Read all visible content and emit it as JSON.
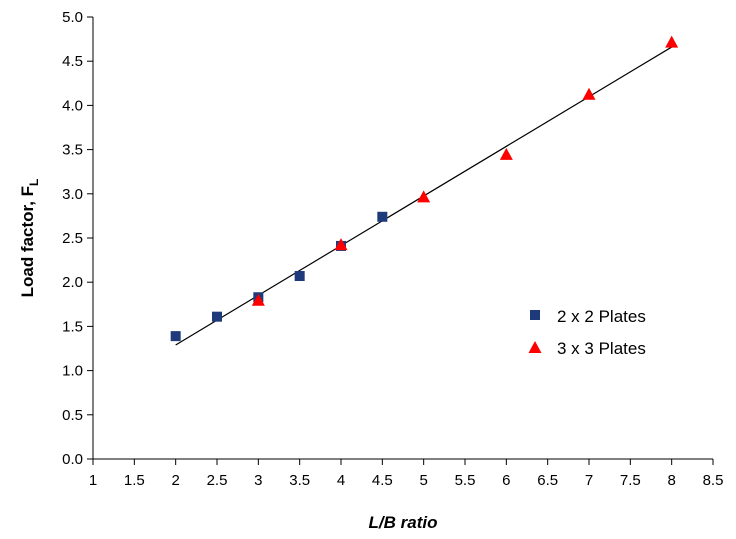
{
  "chart_data": {
    "type": "scatter",
    "title": "",
    "xlabel": "L/B ratio",
    "ylabel": "Load factor, F",
    "ylabel_subscript": "L",
    "xlim": [
      1,
      8.5
    ],
    "ylim": [
      0,
      5.0
    ],
    "x_ticks": [
      "1",
      "1.5",
      "2",
      "2.5",
      "3",
      "3.5",
      "4",
      "4.5",
      "5",
      "5.5",
      "6",
      "6.5",
      "7",
      "7.5",
      "8",
      "8.5"
    ],
    "x_tick_values": [
      1,
      1.5,
      2,
      2.5,
      3,
      3.5,
      4,
      4.5,
      5,
      5.5,
      6,
      6.5,
      7,
      7.5,
      8,
      8.5
    ],
    "y_ticks": [
      "0.0",
      "0.5",
      "1.0",
      "1.5",
      "2.0",
      "2.5",
      "3.0",
      "3.5",
      "4.0",
      "4.5",
      "5.0"
    ],
    "y_tick_values": [
      0,
      0.5,
      1.0,
      1.5,
      2.0,
      2.5,
      3.0,
      3.5,
      4.0,
      4.5,
      5.0
    ],
    "grid": false,
    "legend_position": "right-middle",
    "series": [
      {
        "name": "2 x 2 Plates",
        "marker": "square",
        "color": "#1f3a7a",
        "x": [
          2,
          2.5,
          3,
          3.5,
          4,
          4.5
        ],
        "y": [
          1.39,
          1.61,
          1.83,
          2.07,
          2.41,
          2.74
        ]
      },
      {
        "name": "3 x 3 Plates",
        "marker": "triangle",
        "color": "#ff0000",
        "x": [
          3,
          4,
          5,
          6,
          7,
          8
        ],
        "y": [
          1.79,
          2.42,
          2.96,
          3.44,
          4.12,
          4.71
        ]
      }
    ],
    "trendline": {
      "x": [
        2,
        8
      ],
      "y": [
        1.29,
        4.66
      ],
      "color": "#000000"
    }
  }
}
